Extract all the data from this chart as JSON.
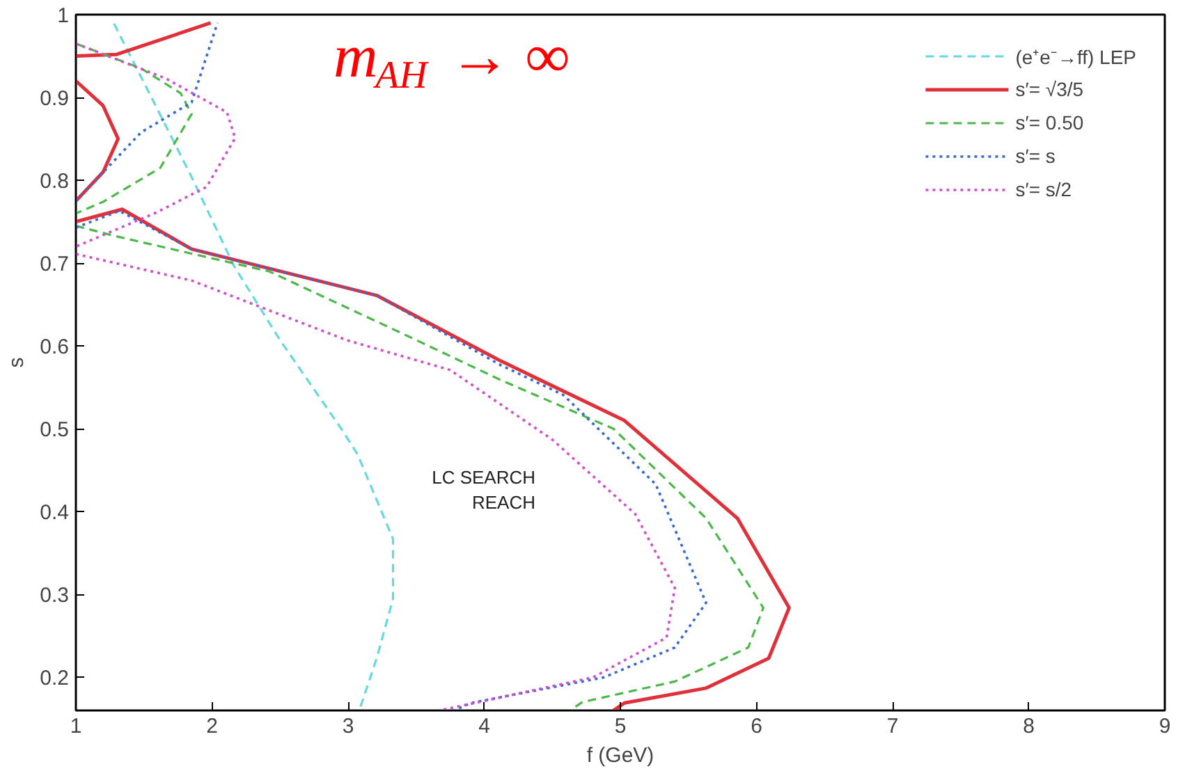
{
  "chart_data": {
    "type": "line",
    "xlabel": "f (GeV)",
    "ylabel": "s",
    "annotations": [
      "m$_{AH}$ → ∞",
      "LC SEARCH\nREACH"
    ],
    "xlim": [
      1,
      9
    ],
    "ylim": [
      0.16,
      1
    ],
    "xticks": [
      1,
      2,
      3,
      4,
      5,
      6,
      7,
      8,
      9
    ],
    "yticks": [
      0.2,
      0.3,
      0.4,
      0.5,
      0.6,
      0.7,
      0.8,
      0.9,
      1
    ],
    "grid": false,
    "legend": "top right",
    "marker": "none",
    "series": [
      {
        "name": "(e⁺e⁻→ff) LEP",
        "color": "#66d8e0",
        "line_style": "dashed",
        "x": [
          1.28,
          1.54,
          1.85,
          2.16,
          2.5,
          2.95,
          3.07,
          3.33,
          3.33,
          3.21,
          3.1,
          3.08
        ],
        "values": [
          0.989,
          0.905,
          0.804,
          0.697,
          0.607,
          0.5,
          0.469,
          0.367,
          0.295,
          0.223,
          0.169,
          0.16
        ]
      },
      {
        "name": "s′= √3/5",
        "color": "#e0303a",
        "line_style": "solid",
        "x": [
          1,
          1.3,
          1.99,
          null,
          1,
          1.2,
          1.31,
          1.2,
          1,
          null,
          1,
          1.34,
          1.85,
          3.21,
          4.12,
          5.03,
          5.86,
          6.24,
          6.09,
          5.63,
          5.03,
          4.95
        ],
        "values": [
          0.95,
          0.952,
          0.99,
          null,
          0.92,
          0.89,
          0.85,
          0.81,
          0.775,
          null,
          0.75,
          0.765,
          0.717,
          0.661,
          0.582,
          0.51,
          0.392,
          0.284,
          0.223,
          0.187,
          0.169,
          0.16
        ]
      },
      {
        "name": "s′= 0.50",
        "color": "#4cb84a",
        "line_style": "dashed",
        "x": [
          1,
          1.48,
          1.77,
          1.85,
          1.62,
          1.2,
          1,
          null,
          1,
          1.28,
          2.42,
          3.36,
          4.12,
          4.95,
          5.63,
          6.05,
          5.94,
          5.4,
          4.72,
          4.63
        ],
        "values": [
          0.965,
          0.935,
          0.905,
          0.88,
          0.815,
          0.774,
          0.76,
          null,
          0.745,
          0.733,
          0.69,
          0.618,
          0.559,
          0.5,
          0.392,
          0.284,
          0.236,
          0.195,
          0.17,
          0.16
        ]
      },
      {
        "name": "s′= s",
        "color": "#3a6ad0",
        "line_style": "dotted",
        "x": [
          1,
          1.48,
          1.85,
          2.04,
          null,
          1,
          1.32,
          1.85,
          3.21,
          4.12,
          4.58,
          5.26,
          5.63,
          5.4,
          4.88,
          3.9,
          3.78
        ],
        "values": [
          0.775,
          0.858,
          0.894,
          0.99,
          null,
          0.743,
          0.763,
          0.717,
          0.661,
          0.577,
          0.541,
          0.433,
          0.29,
          0.236,
          0.2,
          0.169,
          0.16
        ]
      },
      {
        "name": "s′= s/2",
        "color": "#d050d0",
        "line_style": "dotted",
        "x": [
          1,
          1.66,
          2.11,
          2.17,
          1.96,
          1.59,
          1,
          null,
          1,
          1.85,
          2.99,
          3.75,
          4.5,
          5.11,
          5.4,
          5.34,
          4.8,
          3.93,
          3.67
        ],
        "values": [
          0.965,
          0.923,
          0.882,
          0.851,
          0.792,
          0.761,
          0.72,
          null,
          0.711,
          0.679,
          0.607,
          0.571,
          0.487,
          0.397,
          0.308,
          0.248,
          0.2,
          0.169,
          0.16
        ]
      }
    ]
  }
}
